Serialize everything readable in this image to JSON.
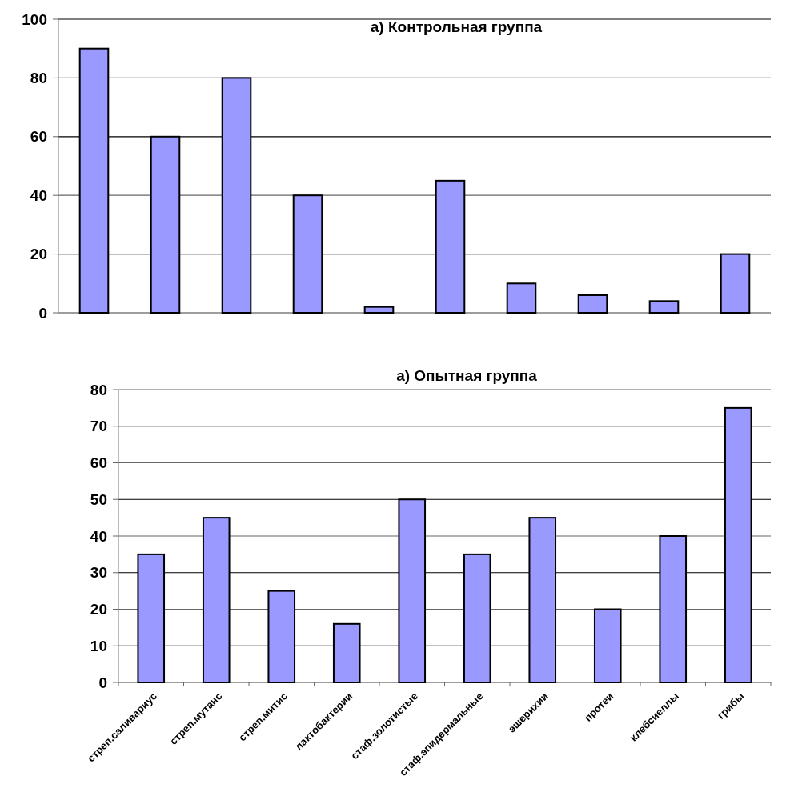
{
  "chart_data": [
    {
      "type": "bar",
      "title": "а) Контрольная группа",
      "categories": [
        null,
        null,
        null,
        null,
        null,
        null,
        null,
        null,
        null,
        null
      ],
      "values": [
        90,
        60,
        80,
        40,
        2,
        45,
        10,
        6,
        4,
        20
      ],
      "color": "#9999ff",
      "ylim": [
        0,
        100
      ],
      "yticks": [
        0,
        20,
        40,
        60,
        80,
        100
      ],
      "grid": "y",
      "tick_labels": "y"
    },
    {
      "type": "bar",
      "title": "а) Опытная группа",
      "categories": [
        "стреп.саливариус",
        "стреп.мутанс",
        "стреп.митис",
        "лактобактерии",
        "стаф.золотистые",
        "стаф.эпидермальные",
        "эшерихии",
        "протеи",
        "клебсиеллы",
        "грибы"
      ],
      "values": [
        35,
        45,
        25,
        16,
        50,
        35,
        45,
        20,
        40,
        75
      ],
      "color": "#9999ff",
      "ylim": [
        0,
        80
      ],
      "yticks": [
        0,
        10,
        20,
        30,
        40,
        50,
        60,
        70,
        80
      ],
      "grid": "y"
    }
  ]
}
